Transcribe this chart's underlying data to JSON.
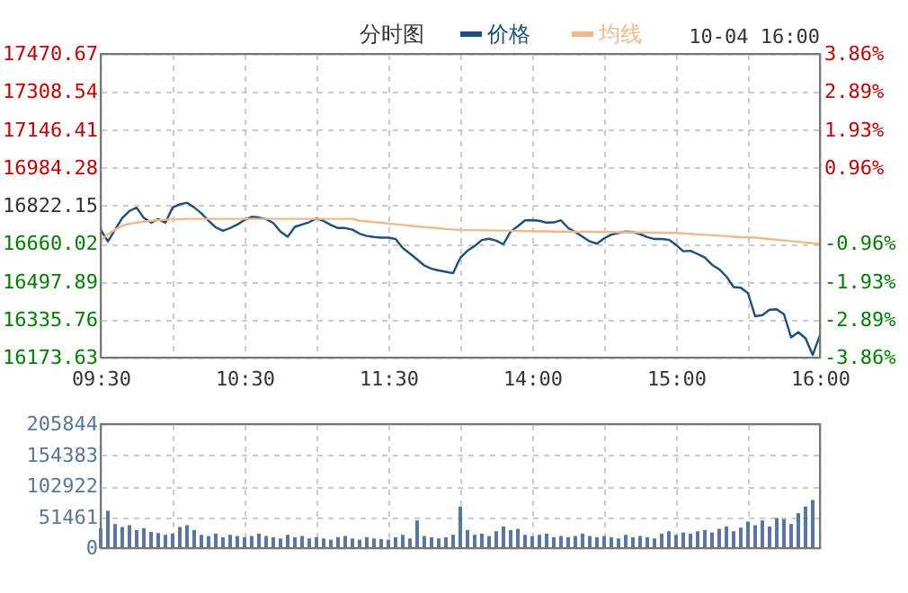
{
  "chart_data": [
    {
      "type": "line",
      "title": "分时图",
      "annotations": [
        "10-04 16:00"
      ],
      "legend": "top",
      "grid": true,
      "marker": "none",
      "line_style": "solid",
      "categories": [
        "09:30",
        null,
        null,
        null,
        null,
        null,
        null,
        null,
        null,
        null,
        null,
        null,
        null,
        null,
        null,
        null,
        null,
        null,
        null,
        null,
        "10:30",
        null,
        null,
        null,
        null,
        null,
        null,
        null,
        null,
        null,
        null,
        null,
        null,
        null,
        null,
        null,
        null,
        null,
        null,
        null,
        "11:30",
        null,
        null,
        null,
        null,
        null,
        null,
        null,
        null,
        null,
        null,
        null,
        null,
        null,
        null,
        null,
        null,
        null,
        null,
        null,
        "14:00",
        null,
        null,
        null,
        null,
        null,
        null,
        null,
        null,
        null,
        null,
        null,
        null,
        null,
        null,
        null,
        null,
        null,
        null,
        null,
        "15:00",
        null,
        null,
        null,
        null,
        null,
        null,
        null,
        null,
        null,
        null,
        null,
        null,
        null,
        null,
        null,
        null,
        null,
        null,
        null,
        "16:00"
      ],
      "ylim": [
        16173.63,
        17470.67
      ],
      "yticks": [
        16173.63,
        16335.76,
        16497.89,
        16660.02,
        16822.15,
        16984.28,
        17146.41,
        17308.54,
        17470.67
      ],
      "y2lim": [
        -3.86,
        3.86
      ],
      "y2ticks": [
        {
          "value": -3.86,
          "label": "-3.86%"
        },
        {
          "value": -2.89,
          "label": "-2.89%"
        },
        {
          "value": -1.93,
          "label": "-1.93%"
        },
        {
          "value": -0.96,
          "label": "-0.96%"
        },
        {
          "value": 0,
          "label": null
        },
        {
          "value": 0.96,
          "label": "0.96%"
        },
        {
          "value": 1.93,
          "label": "1.93%"
        },
        {
          "value": 2.89,
          "label": "2.89%"
        },
        {
          "value": 3.86,
          "label": "3.86%"
        }
      ],
      "series": [
        {
          "name": "价格",
          "color": "#1a4f80",
          "values": [
            16720,
            16670,
            16720,
            16770,
            16800,
            16814,
            16770,
            16750,
            16765,
            16750,
            16815,
            16828,
            16835,
            16815,
            16790,
            16758,
            16730,
            16715,
            16727,
            16742,
            16762,
            16775,
            16772,
            16765,
            16748,
            16712,
            16690,
            16732,
            16742,
            16752,
            16768,
            16757,
            16740,
            16727,
            16727,
            16720,
            16703,
            16693,
            16689,
            16686,
            16686,
            16680,
            16642,
            16618,
            16593,
            16567,
            16553,
            16546,
            16540,
            16534,
            16600,
            16630,
            16650,
            16676,
            16681,
            16673,
            16658,
            16712,
            16735,
            16760,
            16761,
            16758,
            16750,
            16751,
            16760,
            16727,
            16710,
            16690,
            16670,
            16660,
            16683,
            16699,
            16706,
            16712,
            16710,
            16701,
            16688,
            16680,
            16680,
            16677,
            16655,
            16628,
            16630,
            16616,
            16601,
            16570,
            16551,
            16520,
            16475,
            16472,
            16449,
            16350,
            16355,
            16378,
            16380,
            16359,
            16260,
            16282,
            16256,
            16185,
            16269
          ]
        },
        {
          "name": "均线",
          "color": "#f0b98a",
          "values": [
            16675,
            16700,
            16720,
            16737,
            16745,
            16750,
            16754,
            16758,
            16760,
            16762,
            16764,
            16765,
            16766,
            16766,
            16766,
            16766,
            16766,
            16766,
            16766,
            16766,
            16766,
            16766,
            16766,
            16766,
            16766,
            16766,
            16766,
            16766,
            16766,
            16766,
            16766,
            16766,
            16766,
            16766,
            16766,
            16766,
            16758,
            16755,
            16752,
            16750,
            16746,
            16743,
            16740,
            16737,
            16734,
            16731,
            16729,
            16726,
            16723,
            16721,
            16719,
            16718,
            16718,
            16717,
            16717,
            16716,
            16716,
            16715,
            16715,
            16714,
            16714,
            16713,
            16713,
            16712,
            16712,
            16712,
            16711,
            16711,
            16711,
            16710,
            16710,
            16710,
            16709,
            16709,
            16709,
            16708,
            16708,
            16707,
            16707,
            16706,
            16706,
            16704,
            16702,
            16700,
            16698,
            16696,
            16694,
            16692,
            16690,
            16688,
            16687,
            16686,
            16683,
            16680,
            16677,
            16674,
            16671,
            16668,
            16665,
            16662,
            16660
          ]
        }
      ]
    },
    {
      "type": "bar",
      "tick_labels": "y",
      "grid": true,
      "color": "#55789e",
      "categories": [
        null,
        null,
        null,
        null,
        null,
        null,
        null,
        null,
        null,
        null,
        null,
        null,
        null,
        null,
        null,
        null,
        null,
        null,
        null,
        null,
        null,
        null,
        null,
        null,
        null,
        null,
        null,
        null,
        null,
        null,
        null,
        null,
        null,
        null,
        null,
        null,
        null,
        null,
        null,
        null,
        null,
        null,
        null,
        null,
        null,
        null,
        null,
        null,
        null,
        null,
        null,
        null,
        null,
        null,
        null,
        null,
        null,
        null,
        null,
        null,
        null,
        null,
        null,
        null,
        null,
        null,
        null,
        null,
        null,
        null,
        null,
        null,
        null,
        null,
        null,
        null,
        null,
        null,
        null,
        null,
        null,
        null,
        null,
        null,
        null,
        null,
        null,
        null,
        null,
        null,
        null,
        null,
        null,
        null,
        null,
        null,
        null,
        null,
        null,
        null,
        null
      ],
      "ylim": [
        0,
        205844
      ],
      "yticks": [
        0,
        51461,
        102922,
        154383,
        205844
      ],
      "values": [
        33000,
        62000,
        40000,
        35000,
        38000,
        30000,
        33000,
        27000,
        25000,
        22000,
        24000,
        35000,
        38000,
        30000,
        22000,
        20000,
        24000,
        18000,
        22000,
        20000,
        18000,
        20000,
        24000,
        20000,
        18000,
        16000,
        22000,
        18000,
        20000,
        16000,
        18000,
        16000,
        14000,
        18000,
        20000,
        16000,
        14000,
        18000,
        16000,
        15000,
        14000,
        18000,
        22000,
        16000,
        46000,
        20000,
        18000,
        16000,
        18000,
        22000,
        69000,
        30000,
        22000,
        24000,
        20000,
        28000,
        36000,
        30000,
        32000,
        22000,
        20000,
        22000,
        24000,
        18000,
        20000,
        18000,
        20000,
        24000,
        20000,
        18000,
        20000,
        18000,
        16000,
        22000,
        18000,
        20000,
        18000,
        16000,
        24000,
        28000,
        22000,
        26000,
        24000,
        28000,
        30000,
        26000,
        32000,
        36000,
        28000,
        34000,
        44000,
        38000,
        46000,
        36000,
        50000,
        48000,
        40000,
        58000,
        69000,
        80000,
        null
      ]
    }
  ]
}
